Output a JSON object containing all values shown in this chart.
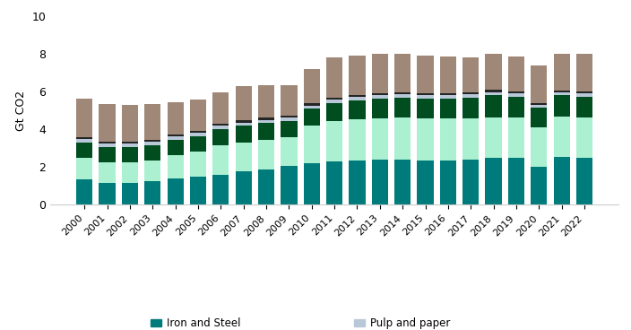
{
  "years": [
    2000,
    2001,
    2002,
    2003,
    2004,
    2005,
    2006,
    2007,
    2008,
    2009,
    2010,
    2011,
    2012,
    2013,
    2014,
    2015,
    2016,
    2017,
    2018,
    2019,
    2020,
    2021,
    2022
  ],
  "iron_and_steel": [
    1.35,
    1.15,
    1.15,
    1.25,
    1.4,
    1.5,
    1.6,
    1.75,
    1.85,
    2.05,
    2.2,
    2.3,
    2.35,
    2.4,
    2.4,
    2.35,
    2.35,
    2.4,
    2.5,
    2.5,
    2.0,
    2.55,
    2.5
  ],
  "cement": [
    1.15,
    1.1,
    1.1,
    1.1,
    1.25,
    1.3,
    1.55,
    1.55,
    1.6,
    1.55,
    2.0,
    2.15,
    2.2,
    2.2,
    2.25,
    2.25,
    2.25,
    2.2,
    2.15,
    2.15,
    2.1,
    2.15,
    2.15
  ],
  "chemical_and_petrochemical": [
    0.8,
    0.8,
    0.8,
    0.8,
    0.78,
    0.82,
    0.85,
    0.88,
    0.88,
    0.85,
    0.9,
    0.95,
    1.0,
    1.05,
    1.05,
    1.05,
    1.05,
    1.1,
    1.15,
    1.1,
    1.05,
    1.1,
    1.1
  ],
  "pulp_and_paper": [
    0.18,
    0.18,
    0.18,
    0.18,
    0.18,
    0.18,
    0.18,
    0.18,
    0.18,
    0.16,
    0.17,
    0.17,
    0.17,
    0.17,
    0.17,
    0.16,
    0.16,
    0.17,
    0.18,
    0.17,
    0.16,
    0.17,
    0.17
  ],
  "aluminium": [
    0.12,
    0.12,
    0.12,
    0.12,
    0.12,
    0.12,
    0.12,
    0.12,
    0.12,
    0.1,
    0.11,
    0.11,
    0.11,
    0.11,
    0.11,
    0.11,
    0.11,
    0.11,
    0.12,
    0.11,
    0.1,
    0.11,
    0.11
  ],
  "other_industry": [
    2.05,
    2.0,
    1.95,
    1.9,
    1.72,
    1.65,
    1.65,
    1.8,
    1.7,
    1.65,
    1.85,
    2.15,
    2.1,
    2.1,
    2.05,
    2.0,
    1.95,
    1.85,
    1.9,
    1.85,
    2.0,
    1.95,
    2.0
  ],
  "colors": {
    "iron_and_steel": "#007b7b",
    "cement": "#aaf0d1",
    "chemical_and_petrochemical": "#004d20",
    "pulp_and_paper": "#b8c8d8",
    "aluminium": "#252525",
    "other_industry": "#a08878"
  },
  "ylabel": "Gt CO2",
  "ylim": [
    0,
    10
  ],
  "yticks": [
    0,
    2,
    4,
    6,
    8,
    10
  ],
  "figsize": [
    7.04,
    3.68
  ],
  "dpi": 100
}
